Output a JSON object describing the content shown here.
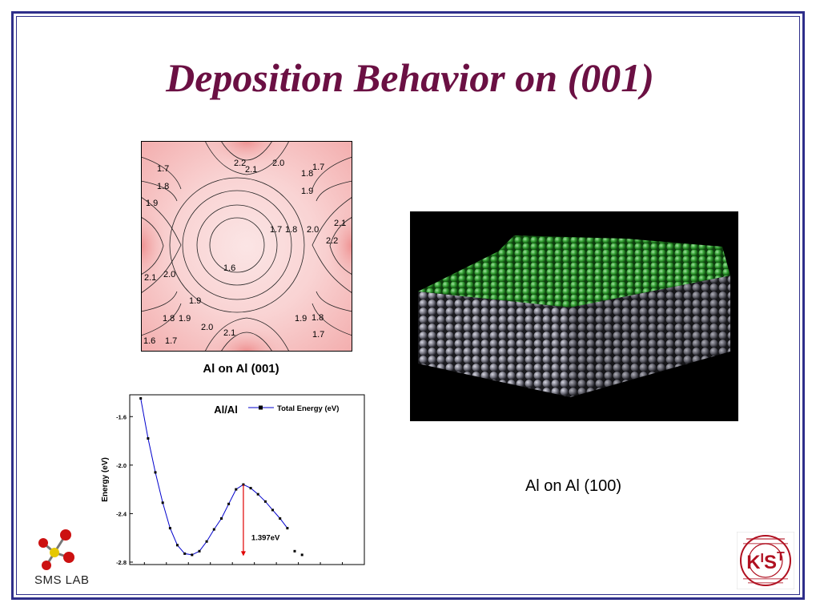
{
  "slide": {
    "title": "Deposition Behavior on (001)",
    "caption_001": "Al on Al (001)",
    "caption_100": "Al on Al (100)"
  },
  "contour_labels": {
    "l1": "1.7",
    "l2": "2.2",
    "l3": "2.1",
    "l4": "2.0",
    "l5": "1.8",
    "l6": "1.7",
    "l7": "1.8",
    "l8": "1.9",
    "l9": "1.9",
    "l10": "2.1",
    "l11": "1.7",
    "l12": "1.8",
    "l13": "2.0",
    "l14": "2.2",
    "l15": "1.6",
    "l16": "2.1",
    "l17": "2.0",
    "l18": "1.9",
    "l19": "1.8",
    "l20": "1.9",
    "l21": "1.9",
    "l22": "1.8",
    "l23": "2.0",
    "l24": "2.1",
    "l25": "1.7",
    "l26": "1.6",
    "l27": "1.7"
  },
  "chart_data": {
    "type": "line",
    "title": "Al/Al",
    "ylabel": "Energy (eV)",
    "xlabel": "",
    "ylim": [
      -2.82,
      -1.42
    ],
    "yticks": [
      "-1.6",
      "-2.0",
      "-2.4",
      "-2.8"
    ],
    "xlim": [
      0,
      32
    ],
    "series": [
      {
        "name": "Total Energy (eV)",
        "color": "#0000cc",
        "marker": "square",
        "x": [
          1.5,
          2.5,
          3.5,
          4.5,
          5.5,
          6.5,
          7.5,
          8.5,
          9.5,
          10.5,
          11.5,
          12.5,
          13.5,
          14.5,
          15.5,
          16.5,
          17.5,
          18.5,
          19.5,
          20.5,
          21.5,
          22.5,
          23.5
        ],
        "y": [
          -1.45,
          -1.78,
          -2.06,
          -2.31,
          -2.52,
          -2.66,
          -2.73,
          -2.74,
          -2.71,
          -2.63,
          -2.53,
          -2.44,
          -2.32,
          -2.2,
          -2.16,
          -2.19,
          -2.24,
          -2.3,
          -2.37,
          -2.44,
          -2.52,
          -2.71,
          -2.74
        ]
      }
    ],
    "annotation": "1.397eV",
    "annotation_color": "#e00000"
  },
  "icons": {
    "sms_logo": "molecule-icon",
    "kist_logo": "kist-seal"
  },
  "logos": {
    "sms_text": "SMS LAB",
    "kist_letters": "KIST",
    "kist_ring": "Korea Institute of Science and Technology"
  }
}
